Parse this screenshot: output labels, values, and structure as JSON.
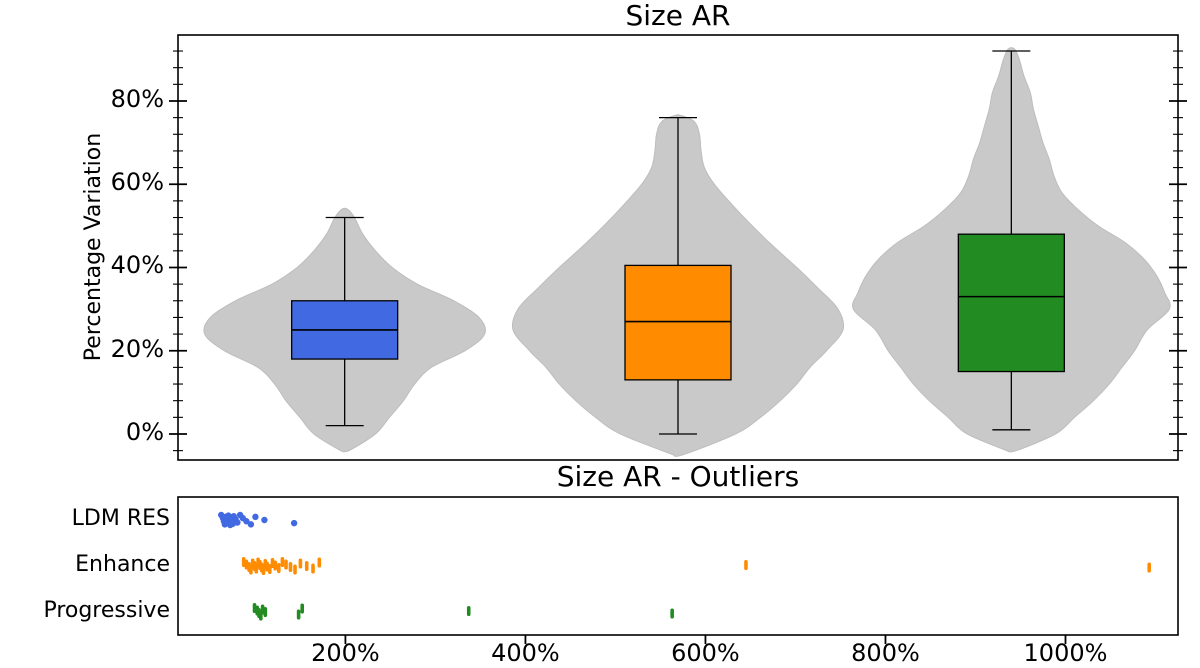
{
  "figure": {
    "background": "#ffffff"
  },
  "chart_data": [
    {
      "type": "violin-box",
      "title": "Size AR",
      "ylabel": "Percentage Variation",
      "ytick_values": [
        0,
        20,
        40,
        60,
        80
      ],
      "ytick_labels": [
        "0%",
        "20%",
        "40%",
        "60%",
        "80%"
      ],
      "ylim": [
        -6.25,
        95.85
      ],
      "minor_tick_step": 4,
      "grid": false,
      "violin_color": "#c9c9c9",
      "series": [
        {
          "name": "LDM RES",
          "color": "#4169e1",
          "box": {
            "q1": 18,
            "median": 25,
            "q3": 32,
            "whisker_low": 2,
            "whisker_high": 52
          },
          "max_half_width": 140,
          "density_profile": [
            [
              -4,
              0.03
            ],
            [
              0,
              0.22
            ],
            [
              4,
              0.32
            ],
            [
              8,
              0.42
            ],
            [
              12,
              0.5
            ],
            [
              16,
              0.62
            ],
            [
              20,
              0.86
            ],
            [
              24,
              1.0
            ],
            [
              28,
              0.96
            ],
            [
              32,
              0.78
            ],
            [
              36,
              0.52
            ],
            [
              40,
              0.34
            ],
            [
              44,
              0.22
            ],
            [
              48,
              0.13
            ],
            [
              52,
              0.07
            ],
            [
              54,
              0.02
            ]
          ]
        },
        {
          "name": "Enhance",
          "color": "#ff8c00",
          "box": {
            "q1": 13,
            "median": 27,
            "q3": 40.5,
            "whisker_low": 0,
            "whisker_high": 76
          },
          "max_half_width": 165,
          "density_profile": [
            [
              -5,
              0.03
            ],
            [
              0,
              0.35
            ],
            [
              4,
              0.5
            ],
            [
              8,
              0.62
            ],
            [
              12,
              0.72
            ],
            [
              16,
              0.8
            ],
            [
              20,
              0.9
            ],
            [
              25,
              1.0
            ],
            [
              30,
              0.97
            ],
            [
              35,
              0.85
            ],
            [
              40,
              0.72
            ],
            [
              45,
              0.58
            ],
            [
              50,
              0.45
            ],
            [
              55,
              0.33
            ],
            [
              60,
              0.22
            ],
            [
              64,
              0.16
            ],
            [
              68,
              0.14
            ],
            [
              72,
              0.13
            ],
            [
              75,
              0.1
            ],
            [
              76.5,
              0.02
            ]
          ]
        },
        {
          "name": "Progressive",
          "color": "#228b22",
          "box": {
            "q1": 15,
            "median": 33,
            "q3": 48,
            "whisker_low": 1,
            "whisker_high": 92
          },
          "max_half_width": 158,
          "density_profile": [
            [
              -4,
              0.03
            ],
            [
              0,
              0.28
            ],
            [
              4,
              0.4
            ],
            [
              8,
              0.52
            ],
            [
              12,
              0.62
            ],
            [
              16,
              0.7
            ],
            [
              20,
              0.78
            ],
            [
              25,
              0.86
            ],
            [
              30,
              1.0
            ],
            [
              34,
              0.97
            ],
            [
              38,
              0.92
            ],
            [
              42,
              0.84
            ],
            [
              46,
              0.72
            ],
            [
              50,
              0.55
            ],
            [
              54,
              0.42
            ],
            [
              58,
              0.32
            ],
            [
              62,
              0.27
            ],
            [
              66,
              0.24
            ],
            [
              70,
              0.2
            ],
            [
              74,
              0.17
            ],
            [
              78,
              0.14
            ],
            [
              82,
              0.12
            ],
            [
              86,
              0.08
            ],
            [
              90,
              0.05
            ],
            [
              92.5,
              0.02
            ]
          ]
        }
      ]
    },
    {
      "type": "scatter",
      "title": "Size AR - Outliers",
      "categories": [
        "LDM RES",
        "Enhance",
        "Progressive"
      ],
      "xtick_values": [
        200,
        400,
        600,
        800,
        1000
      ],
      "xtick_labels": [
        "200%",
        "400%",
        "600%",
        "800%",
        "1000%"
      ],
      "xlim": [
        14,
        1125
      ],
      "grid": false,
      "series": [
        {
          "name": "LDM RES",
          "color": "#4169e1",
          "marker": "dot",
          "values": [
            62,
            64,
            65,
            66,
            67,
            68,
            69,
            70,
            70,
            71,
            72,
            73,
            74,
            75,
            76,
            78,
            80,
            83,
            86,
            90,
            95,
            100,
            110,
            143
          ]
        },
        {
          "name": "Enhance",
          "color": "#ff8c00",
          "marker": "vbar",
          "values": [
            87,
            90,
            93,
            95,
            97,
            99,
            101,
            103,
            105,
            107,
            109,
            111,
            113,
            116,
            119,
            122,
            126,
            130,
            134,
            139,
            144,
            150,
            157,
            164,
            171,
            645,
            1093
          ]
        },
        {
          "name": "Progressive",
          "color": "#228b22",
          "marker": "vbar",
          "values": [
            99,
            102,
            104,
            106,
            108,
            111,
            148,
            152,
            337,
            563
          ]
        }
      ]
    }
  ]
}
